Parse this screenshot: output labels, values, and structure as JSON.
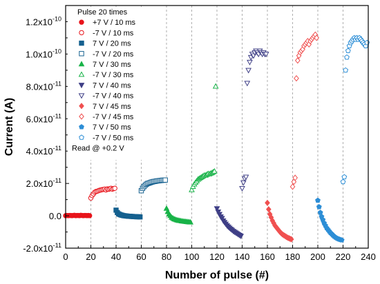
{
  "chart_data": {
    "type": "scatter",
    "xlabel": "Number of pulse (#)",
    "ylabel": "Current (A)",
    "xlim": [
      0,
      240
    ],
    "ylim": [
      -2e-11,
      1.3e-10
    ],
    "x_ticks": [
      {
        "value": 0,
        "label": "0"
      },
      {
        "value": 20,
        "label": "20"
      },
      {
        "value": 40,
        "label": "40"
      },
      {
        "value": 60,
        "label": "60"
      },
      {
        "value": 80,
        "label": "80"
      },
      {
        "value": 100,
        "label": "100"
      },
      {
        "value": 120,
        "label": "120"
      },
      {
        "value": 140,
        "label": "140"
      },
      {
        "value": 160,
        "label": "160"
      },
      {
        "value": 180,
        "label": "180"
      },
      {
        "value": 200,
        "label": "200"
      },
      {
        "value": 220,
        "label": "220"
      },
      {
        "value": 240,
        "label": "240"
      }
    ],
    "y_ticks": [
      {
        "value": -2e-11,
        "base": "-2.0x10",
        "exp": "-11"
      },
      {
        "value": 0,
        "base": "0.0",
        "exp": ""
      },
      {
        "value": 2e-11,
        "base": "2.0x10",
        "exp": "-11"
      },
      {
        "value": 4e-11,
        "base": "4.0x10",
        "exp": "-11"
      },
      {
        "value": 6e-11,
        "base": "6.0x10",
        "exp": "-11"
      },
      {
        "value": 8e-11,
        "base": "8.0x10",
        "exp": "-11"
      },
      {
        "value": 1e-10,
        "base": "1.0x10",
        "exp": "-10"
      },
      {
        "value": 1.2e-10,
        "base": "1.2x10",
        "exp": "-10"
      }
    ],
    "vertical_gridlines": [
      20,
      40,
      60,
      80,
      100,
      120,
      140,
      160,
      180,
      200,
      220
    ],
    "grid": "dashed vertical at block boundaries",
    "legend": {
      "title": "Pulse 20 times",
      "footer": "Read @ +0.2 V",
      "placement": "top-left"
    },
    "series": [
      {
        "name": "+7 V / 10 ms",
        "color": "#e8141b",
        "marker": "circle",
        "filled": true,
        "points": [
          [
            0,
            1e-13
          ],
          [
            1,
            2e-13
          ],
          [
            2,
            1e-13
          ],
          [
            3,
            2e-13
          ],
          [
            4,
            2e-13
          ],
          [
            5,
            1e-13
          ],
          [
            6,
            2e-13
          ],
          [
            7,
            3e-13
          ],
          [
            8,
            1e-13
          ],
          [
            9,
            2e-13
          ],
          [
            10,
            2e-13
          ],
          [
            11,
            1e-13
          ],
          [
            12,
            3e-13
          ],
          [
            13,
            2e-13
          ],
          [
            14,
            1e-13
          ],
          [
            15,
            2e-13
          ],
          [
            16,
            2e-13
          ],
          [
            17,
            1e-13
          ],
          [
            18,
            2e-13
          ],
          [
            19,
            1e-13
          ]
        ]
      },
      {
        "name": "-7 V / 10 ms",
        "color": "#e8141b",
        "marker": "circle",
        "filled": false,
        "points": [
          [
            20,
            1.1e-11
          ],
          [
            21,
            1.25e-11
          ],
          [
            22,
            1.35e-11
          ],
          [
            23,
            1.45e-11
          ],
          [
            24,
            1.5e-11
          ],
          [
            25,
            1.52e-11
          ],
          [
            26,
            1.55e-11
          ],
          [
            27,
            1.58e-11
          ],
          [
            28,
            1.6e-11
          ],
          [
            29,
            1.62e-11
          ],
          [
            30,
            1.63e-11
          ],
          [
            31,
            1.65e-11
          ],
          [
            32,
            1.6e-11
          ],
          [
            33,
            1.66e-11
          ],
          [
            34,
            1.64e-11
          ],
          [
            35,
            1.67e-11
          ],
          [
            36,
            1.7e-11
          ],
          [
            37,
            1.65e-11
          ],
          [
            38,
            1.68e-11
          ],
          [
            39,
            1.7e-11
          ]
        ]
      },
      {
        "name": "7 V / 20 ms",
        "color": "#15608f",
        "marker": "square",
        "filled": true,
        "points": [
          [
            40,
            3.5e-12
          ],
          [
            41,
            2e-12
          ],
          [
            42,
            1.2e-12
          ],
          [
            43,
            8e-13
          ],
          [
            44,
            5e-13
          ],
          [
            45,
            3e-13
          ],
          [
            46,
            1e-13
          ],
          [
            47,
            0.0
          ],
          [
            48,
            -1e-13
          ],
          [
            49,
            -2e-13
          ],
          [
            50,
            -3e-13
          ],
          [
            51,
            -3e-13
          ],
          [
            52,
            -4e-13
          ],
          [
            53,
            -4e-13
          ],
          [
            54,
            -5e-13
          ],
          [
            55,
            -5e-13
          ],
          [
            56,
            -6e-13
          ],
          [
            57,
            -6e-13
          ],
          [
            58,
            -6e-13
          ],
          [
            59,
            -7e-13
          ]
        ]
      },
      {
        "name": "-7 V / 20 ms",
        "color": "#15608f",
        "marker": "square",
        "filled": false,
        "points": [
          [
            60,
            1.55e-11
          ],
          [
            61,
            1.7e-11
          ],
          [
            62,
            1.8e-11
          ],
          [
            63,
            1.88e-11
          ],
          [
            64,
            1.95e-11
          ],
          [
            65,
            2e-11
          ],
          [
            66,
            2.02e-11
          ],
          [
            67,
            2.05e-11
          ],
          [
            68,
            2.08e-11
          ],
          [
            69,
            2.1e-11
          ],
          [
            70,
            2.12e-11
          ],
          [
            71,
            2.13e-11
          ],
          [
            72,
            2.15e-11
          ],
          [
            73,
            2.16e-11
          ],
          [
            74,
            2.17e-11
          ],
          [
            75,
            2.18e-11
          ],
          [
            76,
            2.19e-11
          ],
          [
            77,
            2.2e-11
          ],
          [
            78,
            2.2e-11
          ],
          [
            79,
            2.21e-11
          ]
        ]
      },
      {
        "name": "7 V / 30 ms",
        "color": "#18b348",
        "marker": "triangle",
        "filled": true,
        "points": [
          [
            80,
            4.5e-12
          ],
          [
            81,
            2.5e-12
          ],
          [
            82,
            1e-12
          ],
          [
            83,
            0.0
          ],
          [
            84,
            -1e-12
          ],
          [
            85,
            -1.5e-12
          ],
          [
            86,
            -2e-12
          ],
          [
            87,
            -2.3e-12
          ],
          [
            88,
            -2.6e-12
          ],
          [
            89,
            -2.8e-12
          ],
          [
            90,
            -3e-12
          ],
          [
            91,
            -3.1e-12
          ],
          [
            92,
            -3.3e-12
          ],
          [
            93,
            -3.4e-12
          ],
          [
            94,
            -3.5e-12
          ],
          [
            95,
            -3.6e-12
          ],
          [
            96,
            -3.7e-12
          ],
          [
            97,
            -3.8e-12
          ],
          [
            98,
            -3.9e-12
          ],
          [
            99,
            -4e-12
          ]
        ]
      },
      {
        "name": "-7 V / 30 ms",
        "color": "#18b348",
        "marker": "triangle",
        "filled": false,
        "points": [
          [
            100,
            1.6e-11
          ],
          [
            101,
            1.8e-11
          ],
          [
            102,
            1.95e-11
          ],
          [
            103,
            2.05e-11
          ],
          [
            104,
            2.15e-11
          ],
          [
            105,
            2.25e-11
          ],
          [
            106,
            2.3e-11
          ],
          [
            107,
            2.35e-11
          ],
          [
            108,
            2.4e-11
          ],
          [
            109,
            2.45e-11
          ],
          [
            110,
            2.5e-11
          ],
          [
            111,
            2.5e-11
          ],
          [
            112,
            2.55e-11
          ],
          [
            113,
            2.6e-11
          ],
          [
            114,
            2.58e-11
          ],
          [
            115,
            2.62e-11
          ],
          [
            116,
            2.65e-11
          ],
          [
            117,
            2.7e-11
          ],
          [
            118,
            2.75e-11
          ],
          [
            119,
            8e-11
          ]
        ]
      },
      {
        "name": "7 V / 40 ms",
        "color": "#3f3f86",
        "marker": "triangle-down",
        "filled": true,
        "points": [
          [
            120,
            4.5e-12
          ],
          [
            121,
            2.5e-12
          ],
          [
            122,
            1e-12
          ],
          [
            123,
            -5e-13
          ],
          [
            124,
            -1.5e-12
          ],
          [
            125,
            -3e-12
          ],
          [
            126,
            -4e-12
          ],
          [
            127,
            -5e-12
          ],
          [
            128,
            -6e-12
          ],
          [
            129,
            -6.8e-12
          ],
          [
            130,
            -7.5e-12
          ],
          [
            131,
            -8.2e-12
          ],
          [
            132,
            -8.8e-12
          ],
          [
            133,
            -9.5e-12
          ],
          [
            134,
            -1e-11
          ],
          [
            135,
            -1.05e-11
          ],
          [
            136,
            -1.1e-11
          ],
          [
            137,
            -1.15e-11
          ],
          [
            138,
            -1.2e-11
          ],
          [
            139,
            -1.25e-11
          ]
        ]
      },
      {
        "name": "-7 V / 40 ms",
        "color": "#3f3f86",
        "marker": "triangle-down",
        "filled": false,
        "points": [
          [
            140,
            1.7e-11
          ],
          [
            141,
            2.05e-11
          ],
          [
            142,
            2.3e-11
          ],
          [
            143,
            2.4e-11
          ],
          [
            144,
            8.2e-11
          ],
          [
            145,
            9e-11
          ],
          [
            146,
            9.5e-11
          ],
          [
            147,
            9.8e-11
          ],
          [
            148,
            1e-10
          ],
          [
            149,
            9.9e-11
          ],
          [
            150,
            1.01e-10
          ],
          [
            151,
            1.02e-10
          ],
          [
            152,
            1.01e-10
          ],
          [
            153,
            1e-10
          ],
          [
            154,
            1.02e-10
          ],
          [
            155,
            1.01e-10
          ],
          [
            156,
            1e-10
          ],
          [
            157,
            1.01e-10
          ],
          [
            158,
            1e-10
          ],
          [
            159,
            1e-10
          ]
        ]
      },
      {
        "name": "7 V / 45 ms",
        "color": "#f05050",
        "marker": "diamond",
        "filled": true,
        "points": [
          [
            160,
            8e-12
          ],
          [
            161,
            4e-12
          ],
          [
            162,
            1e-12
          ],
          [
            163,
            -1e-12
          ],
          [
            164,
            -3e-12
          ],
          [
            165,
            -4.5e-12
          ],
          [
            166,
            -6e-12
          ],
          [
            167,
            -7e-12
          ],
          [
            168,
            -8e-12
          ],
          [
            169,
            -9e-12
          ],
          [
            170,
            -1e-11
          ],
          [
            171,
            -1.08e-11
          ],
          [
            172,
            -1.15e-11
          ],
          [
            173,
            -1.2e-11
          ],
          [
            174,
            -1.25e-11
          ],
          [
            175,
            -1.3e-11
          ],
          [
            176,
            -1.35e-11
          ],
          [
            177,
            -1.38e-11
          ],
          [
            178,
            -1.42e-11
          ],
          [
            179,
            -1.45e-11
          ]
        ]
      },
      {
        "name": "-7 V / 45 ms",
        "color": "#f05050",
        "marker": "diamond",
        "filled": false,
        "points": [
          [
            180,
            1.8e-11
          ],
          [
            181,
            2.1e-11
          ],
          [
            182,
            2.35e-11
          ],
          [
            183,
            8.5e-11
          ],
          [
            184,
            9.6e-11
          ],
          [
            185,
            9.9e-11
          ],
          [
            186,
            1.01e-10
          ],
          [
            187,
            1.02e-10
          ],
          [
            188,
            1.03e-10
          ],
          [
            189,
            1.05e-10
          ],
          [
            190,
            1.06e-10
          ],
          [
            191,
            1.07e-10
          ],
          [
            192,
            1.08e-10
          ],
          [
            193,
            1.06e-10
          ],
          [
            194,
            1.08e-10
          ],
          [
            195,
            1.09e-10
          ],
          [
            196,
            1.1e-10
          ],
          [
            197,
            1.11e-10
          ],
          [
            198,
            1.12e-10
          ],
          [
            199,
            1.1e-10
          ]
        ]
      },
      {
        "name": "7 V / 50 ms",
        "color": "#2d8ed6",
        "marker": "pentagon",
        "filled": true,
        "points": [
          [
            200,
            9.5e-12
          ],
          [
            201,
            5.5e-12
          ],
          [
            202,
            2e-12
          ],
          [
            203,
            -5e-13
          ],
          [
            204,
            -2.5e-12
          ],
          [
            205,
            -4.5e-12
          ],
          [
            206,
            -6e-12
          ],
          [
            207,
            -7.5e-12
          ],
          [
            208,
            -8.5e-12
          ],
          [
            209,
            -9.5e-12
          ],
          [
            210,
            -1.05e-11
          ],
          [
            211,
            -1.12e-11
          ],
          [
            212,
            -1.2e-11
          ],
          [
            213,
            -1.27e-11
          ],
          [
            214,
            -1.33e-11
          ],
          [
            215,
            -1.38e-11
          ],
          [
            216,
            -1.42e-11
          ],
          [
            217,
            -1.45e-11
          ],
          [
            218,
            -1.48e-11
          ],
          [
            219,
            -1.5e-11
          ]
        ]
      },
      {
        "name": "-7 V / 50 ms",
        "color": "#2d8ed6",
        "marker": "pentagon",
        "filled": false,
        "points": [
          [
            220,
            2.1e-11
          ],
          [
            221,
            2.4e-11
          ],
          [
            222,
            9e-11
          ],
          [
            223,
            9.8e-11
          ],
          [
            224,
            1.02e-10
          ],
          [
            225,
            1.05e-10
          ],
          [
            226,
            1.07e-10
          ],
          [
            227,
            1.08e-10
          ],
          [
            228,
            1.09e-10
          ],
          [
            229,
            1.1e-10
          ],
          [
            230,
            1.09e-10
          ],
          [
            231,
            1.1e-10
          ],
          [
            232,
            1.09e-10
          ],
          [
            233,
            1.1e-10
          ],
          [
            234,
            1.09e-10
          ],
          [
            235,
            1.08e-10
          ],
          [
            236,
            1.07e-10
          ],
          [
            237,
            1.06e-10
          ],
          [
            238,
            1.05e-10
          ],
          [
            239,
            1.07e-10
          ]
        ]
      }
    ]
  }
}
